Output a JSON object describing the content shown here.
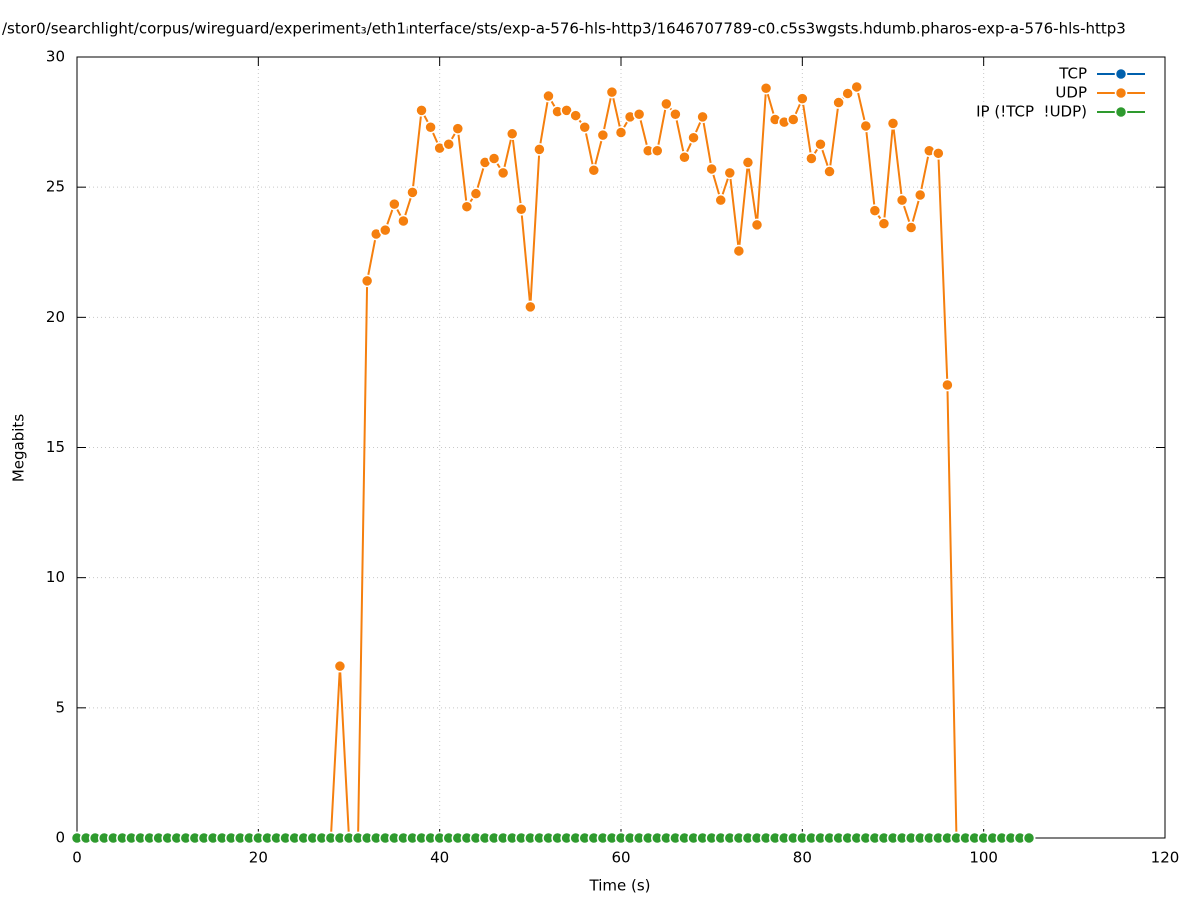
{
  "chart_data": {
    "type": "line",
    "title": "/stor0/searchlight/corpus/wireguard/experiment₃/eth1ᵢnterface/sts/exp-a-576-hls-http3/1646707789-c0.c5s3wgsts.hdumb.pharos-exp-a-576-hls-http3",
    "x_label": "Time (s)",
    "y_label": "Megabits",
    "x": [
      0,
      1,
      2,
      3,
      4,
      5,
      6,
      7,
      8,
      9,
      10,
      11,
      12,
      13,
      14,
      15,
      16,
      17,
      18,
      19,
      20,
      21,
      22,
      23,
      24,
      25,
      26,
      27,
      28,
      29,
      30,
      31,
      32,
      33,
      34,
      35,
      36,
      37,
      38,
      39,
      40,
      41,
      42,
      43,
      44,
      45,
      46,
      47,
      48,
      49,
      50,
      51,
      52,
      53,
      54,
      55,
      56,
      57,
      58,
      59,
      60,
      61,
      62,
      63,
      64,
      65,
      66,
      67,
      68,
      69,
      70,
      71,
      72,
      73,
      74,
      75,
      76,
      77,
      78,
      79,
      80,
      81,
      82,
      83,
      84,
      85,
      86,
      87,
      88,
      89,
      90,
      91,
      92,
      93,
      94,
      95,
      96,
      97,
      98,
      99,
      100,
      101,
      102,
      103,
      104,
      105
    ],
    "series": [
      {
        "name": "TCP",
        "color": "#0060ad",
        "values": [
          0,
          0,
          0,
          0,
          0,
          0,
          0,
          0,
          0,
          0,
          0,
          0,
          0,
          0,
          0,
          0,
          0,
          0,
          0,
          0,
          0,
          0,
          0,
          0,
          0,
          0,
          0,
          0,
          0,
          0,
          0,
          0,
          0,
          0,
          0,
          0,
          0,
          0,
          0,
          0,
          0,
          0,
          0,
          0,
          0,
          0,
          0,
          0,
          0,
          0,
          0,
          0,
          0,
          0,
          0,
          0,
          0,
          0,
          0,
          0,
          0,
          0,
          0,
          0,
          0,
          0,
          0,
          0,
          0,
          0,
          0,
          0,
          0,
          0,
          0,
          0,
          0,
          0,
          0,
          0,
          0,
          0,
          0,
          0,
          0,
          0,
          0,
          0,
          0,
          0,
          0,
          0,
          0,
          0,
          0,
          0,
          0,
          0,
          0,
          0,
          0,
          0,
          0,
          0,
          0,
          0
        ]
      },
      {
        "name": "UDP",
        "color": "#f57f0e",
        "values": [
          0,
          0,
          0,
          0,
          0,
          0,
          0,
          0,
          0,
          0,
          0,
          0,
          0,
          0,
          0,
          0,
          0,
          0,
          0,
          0,
          0,
          0,
          0,
          0,
          0,
          0,
          0,
          0,
          0,
          6.6,
          0,
          0,
          21.4,
          23.2,
          23.35,
          24.35,
          23.7,
          24.8,
          27.95,
          27.3,
          26.5,
          26.65,
          27.25,
          24.25,
          24.75,
          25.95,
          26.1,
          25.55,
          27.05,
          24.15,
          20.4,
          26.45,
          28.5,
          27.9,
          27.95,
          27.75,
          27.3,
          25.65,
          27.0,
          28.65,
          27.1,
          27.7,
          27.8,
          26.4,
          26.4,
          28.2,
          27.8,
          26.15,
          26.9,
          27.7,
          25.7,
          24.5,
          25.55,
          22.55,
          25.95,
          23.55,
          28.8,
          27.6,
          27.5,
          27.6,
          28.4,
          26.1,
          26.65,
          25.6,
          28.25,
          28.6,
          28.85,
          27.35,
          24.1,
          23.6,
          27.45,
          24.5,
          23.45,
          24.7,
          26.4,
          26.3,
          17.4,
          0,
          0,
          0,
          0,
          0,
          0,
          0,
          0,
          0
        ]
      },
      {
        "name": "IP (!TCP  !UDP)",
        "color": "#2e9a2e",
        "values": [
          0,
          0,
          0,
          0,
          0,
          0,
          0,
          0,
          0,
          0,
          0,
          0,
          0,
          0,
          0,
          0,
          0,
          0,
          0,
          0,
          0,
          0,
          0,
          0,
          0,
          0,
          0,
          0,
          0,
          0,
          0,
          0,
          0,
          0,
          0,
          0,
          0,
          0,
          0,
          0,
          0,
          0,
          0,
          0,
          0,
          0,
          0,
          0,
          0,
          0,
          0,
          0,
          0,
          0,
          0,
          0,
          0,
          0,
          0,
          0,
          0,
          0,
          0,
          0,
          0,
          0,
          0,
          0,
          0,
          0,
          0,
          0,
          0,
          0,
          0,
          0,
          0,
          0,
          0,
          0,
          0,
          0,
          0,
          0,
          0,
          0,
          0,
          0,
          0,
          0,
          0,
          0,
          0,
          0,
          0,
          0,
          0,
          0,
          0,
          0,
          0,
          0,
          0,
          0,
          0,
          0
        ]
      }
    ],
    "xlim": [
      0,
      120
    ],
    "xticks": [
      0,
      20,
      40,
      60,
      80,
      100,
      120
    ],
    "ylim": [
      0,
      30
    ],
    "yticks": [
      0,
      5,
      10,
      15,
      20,
      25,
      30
    ],
    "grid": true,
    "legend": "top right"
  }
}
